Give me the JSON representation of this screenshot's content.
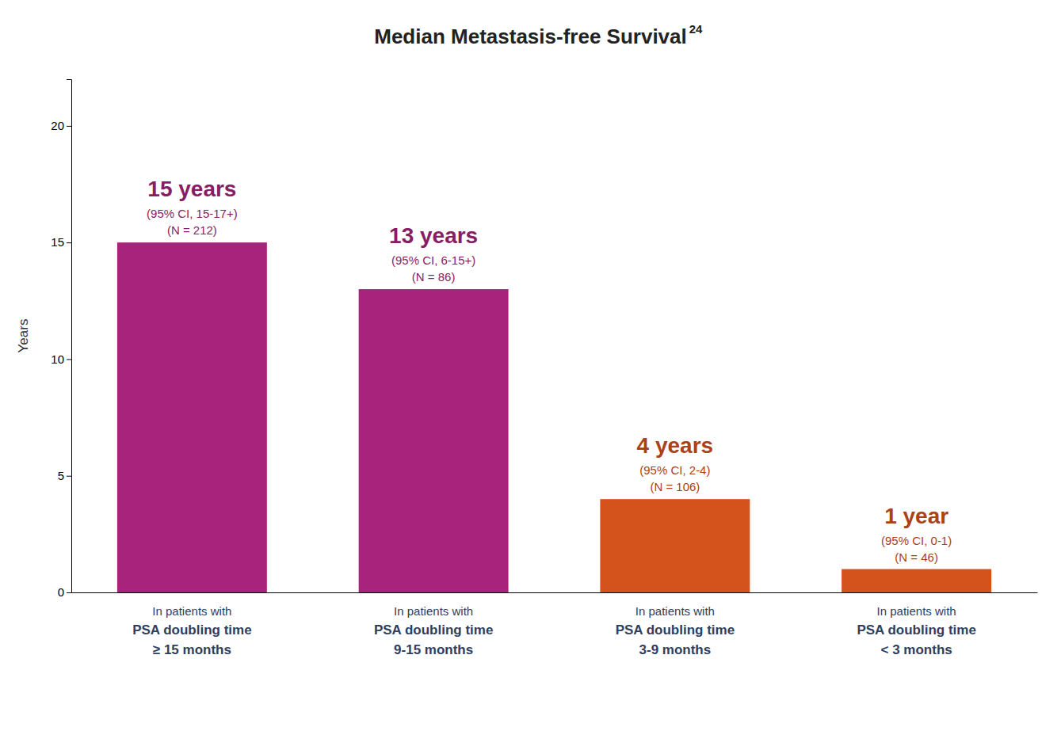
{
  "chart_data": {
    "type": "bar",
    "title": "Median Metastasis-free Survival",
    "annotations": [
      "24"
    ],
    "ylabel": "Years",
    "categories": [
      "In patients with\nPSA doubling time\n≥ 15 months",
      "In patients with\nPSA doubling time\n9-15 months",
      "In patients with\nPSA doubling time\n3-9 months",
      "In patients with\nPSA doubling time\n< 3 months"
    ],
    "values": [
      15,
      13,
      4,
      1
    ],
    "value_labels": [
      "15 years",
      "13 years",
      "4 years",
      "1 year"
    ],
    "bar_notes": [
      [
        "(95% CI, 15-17+)",
        "(N = 212)"
      ],
      [
        "(95% CI, 6-15+)",
        "(N = 86)"
      ],
      [
        "(95% CI, 2-4)",
        "(N = 106)"
      ],
      [
        "(95% CI, 0-1)",
        "(N = 46)"
      ]
    ],
    "colors": [
      "#a8247c",
      "#a8247c",
      "#d4521c",
      "#d4521c"
    ],
    "data_labels": true,
    "grid": false,
    "ylim": [
      0,
      22
    ],
    "yticks": [
      0,
      5,
      10,
      15,
      20
    ]
  }
}
